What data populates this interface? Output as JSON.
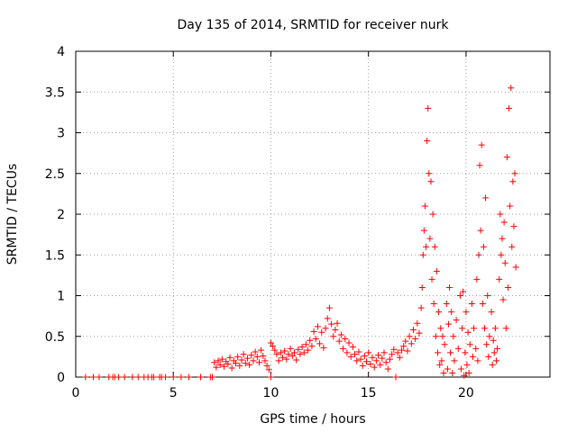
{
  "chart_data": {
    "type": "scatter",
    "title": "Day 135 of 2014, SRMTID for receiver nurk",
    "xlabel": "GPS time / hours",
    "ylabel": "SRMTID / TECUs",
    "xlim": [
      0,
      24.3
    ],
    "ylim": [
      0,
      4
    ],
    "x_ticks": [
      0,
      5,
      10,
      15,
      20
    ],
    "x_tick_labels": [
      "0",
      "5",
      "10",
      "15",
      "20"
    ],
    "y_ticks": [
      0,
      0.5,
      1,
      1.5,
      2,
      2.5,
      3,
      3.5,
      4
    ],
    "y_tick_labels": [
      "0",
      "0.5",
      "1",
      "1.5",
      "2",
      "2.5",
      "3",
      "3.5",
      "4"
    ],
    "grid": true,
    "marker": "+",
    "series": [
      {
        "name": "SRMTID",
        "color": "#ff0000",
        "points": [
          [
            0.5,
            0
          ],
          [
            0.9,
            0
          ],
          [
            1.2,
            0
          ],
          [
            1.7,
            0
          ],
          [
            1.9,
            0
          ],
          [
            2.0,
            0
          ],
          [
            2.2,
            0
          ],
          [
            2.5,
            0
          ],
          [
            2.9,
            0
          ],
          [
            3.2,
            0
          ],
          [
            3.5,
            0
          ],
          [
            3.7,
            0
          ],
          [
            3.9,
            0
          ],
          [
            4.0,
            0
          ],
          [
            4.3,
            0
          ],
          [
            4.4,
            0
          ],
          [
            4.6,
            0
          ],
          [
            5.0,
            0
          ],
          [
            5.4,
            0
          ],
          [
            5.8,
            0
          ],
          [
            6.4,
            0
          ],
          [
            6.9,
            0
          ],
          [
            7.0,
            0
          ],
          [
            10.0,
            0
          ],
          [
            16.4,
            0
          ],
          [
            7.1,
            0.18
          ],
          [
            7.2,
            0.12
          ],
          [
            7.3,
            0.2
          ],
          [
            7.4,
            0.15
          ],
          [
            7.5,
            0.22
          ],
          [
            7.6,
            0.13
          ],
          [
            7.7,
            0.19
          ],
          [
            7.8,
            0.16
          ],
          [
            7.9,
            0.24
          ],
          [
            8.0,
            0.11
          ],
          [
            8.1,
            0.2
          ],
          [
            8.2,
            0.17
          ],
          [
            8.3,
            0.25
          ],
          [
            8.4,
            0.14
          ],
          [
            8.5,
            0.21
          ],
          [
            8.6,
            0.28
          ],
          [
            8.7,
            0.17
          ],
          [
            8.8,
            0.23
          ],
          [
            8.9,
            0.15
          ],
          [
            9.0,
            0.27
          ],
          [
            9.1,
            0.2
          ],
          [
            9.2,
            0.31
          ],
          [
            9.3,
            0.25
          ],
          [
            9.4,
            0.18
          ],
          [
            9.5,
            0.33
          ],
          [
            9.6,
            0.26
          ],
          [
            9.7,
            0.2
          ],
          [
            9.8,
            0.14
          ],
          [
            9.9,
            0.09
          ],
          [
            10.0,
            0.42
          ],
          [
            10.1,
            0.38
          ],
          [
            10.2,
            0.33
          ],
          [
            10.3,
            0.28
          ],
          [
            10.4,
            0.2
          ],
          [
            10.5,
            0.3
          ],
          [
            10.6,
            0.24
          ],
          [
            10.7,
            0.32
          ],
          [
            10.8,
            0.22
          ],
          [
            10.9,
            0.28
          ],
          [
            11.0,
            0.35
          ],
          [
            11.1,
            0.26
          ],
          [
            11.2,
            0.3
          ],
          [
            11.3,
            0.21
          ],
          [
            11.4,
            0.34
          ],
          [
            11.5,
            0.28
          ],
          [
            11.6,
            0.37
          ],
          [
            11.7,
            0.3
          ],
          [
            11.8,
            0.4
          ],
          [
            11.9,
            0.33
          ],
          [
            12.0,
            0.45
          ],
          [
            12.1,
            0.38
          ],
          [
            12.2,
            0.56
          ],
          [
            12.3,
            0.47
          ],
          [
            12.4,
            0.62
          ],
          [
            12.5,
            0.41
          ],
          [
            12.6,
            0.55
          ],
          [
            12.7,
            0.36
          ],
          [
            12.8,
            0.6
          ],
          [
            12.9,
            0.72
          ],
          [
            13.0,
            0.85
          ],
          [
            13.1,
            0.65
          ],
          [
            13.2,
            0.5
          ],
          [
            13.3,
            0.58
          ],
          [
            13.4,
            0.66
          ],
          [
            13.5,
            0.44
          ],
          [
            13.6,
            0.52
          ],
          [
            13.7,
            0.35
          ],
          [
            13.8,
            0.47
          ],
          [
            13.9,
            0.3
          ],
          [
            14.0,
            0.42
          ],
          [
            14.1,
            0.25
          ],
          [
            14.2,
            0.37
          ],
          [
            14.3,
            0.28
          ],
          [
            14.4,
            0.2
          ],
          [
            14.5,
            0.31
          ],
          [
            14.6,
            0.22
          ],
          [
            14.7,
            0.14
          ],
          [
            14.8,
            0.26
          ],
          [
            14.9,
            0.19
          ],
          [
            15.0,
            0.3
          ],
          [
            15.1,
            0.16
          ],
          [
            15.2,
            0.24
          ],
          [
            15.3,
            0.12
          ],
          [
            15.4,
            0.2
          ],
          [
            15.5,
            0.27
          ],
          [
            15.6,
            0.15
          ],
          [
            15.7,
            0.23
          ],
          [
            15.8,
            0.3
          ],
          [
            15.9,
            0.18
          ],
          [
            16.0,
            0.1
          ],
          [
            16.1,
            0.22
          ],
          [
            16.2,
            0.28
          ],
          [
            16.3,
            0.34
          ],
          [
            16.5,
            0.3
          ],
          [
            16.6,
            0.24
          ],
          [
            16.7,
            0.33
          ],
          [
            16.8,
            0.38
          ],
          [
            16.9,
            0.44
          ],
          [
            17.0,
            0.32
          ],
          [
            17.1,
            0.5
          ],
          [
            17.2,
            0.41
          ],
          [
            17.3,
            0.58
          ],
          [
            17.4,
            0.47
          ],
          [
            17.5,
            0.66
          ],
          [
            17.6,
            0.54
          ],
          [
            17.7,
            0.85
          ],
          [
            17.75,
            1.1
          ],
          [
            17.8,
            1.5
          ],
          [
            17.85,
            1.8
          ],
          [
            17.9,
            2.1
          ],
          [
            17.95,
            1.6
          ],
          [
            18.0,
            2.9
          ],
          [
            18.05,
            3.3
          ],
          [
            18.1,
            2.5
          ],
          [
            18.15,
            1.7
          ],
          [
            18.2,
            2.4
          ],
          [
            18.25,
            1.2
          ],
          [
            18.3,
            2.0
          ],
          [
            18.35,
            0.9
          ],
          [
            18.4,
            1.6
          ],
          [
            18.45,
            0.5
          ],
          [
            18.5,
            1.3
          ],
          [
            18.55,
            0.3
          ],
          [
            18.6,
            0.8
          ],
          [
            18.65,
            0.15
          ],
          [
            18.7,
            0.6
          ],
          [
            18.75,
            0.2
          ],
          [
            18.8,
            0.5
          ],
          [
            18.85,
            0.05
          ],
          [
            18.9,
            0.4
          ],
          [
            19.0,
            0.9
          ],
          [
            19.05,
            0.1
          ],
          [
            19.1,
            0.65
          ],
          [
            19.15,
            1.1
          ],
          [
            19.2,
            0.3
          ],
          [
            19.25,
            0.8
          ],
          [
            19.3,
            0.05
          ],
          [
            19.35,
            0.5
          ],
          [
            19.4,
            0.2
          ],
          [
            19.5,
            0.7
          ],
          [
            19.6,
            0.35
          ],
          [
            19.7,
            1.0
          ],
          [
            19.75,
            0.1
          ],
          [
            19.8,
            0.6
          ],
          [
            19.85,
            1.05
          ],
          [
            19.9,
            0.02
          ],
          [
            19.95,
            0.3
          ],
          [
            20.0,
            0.8
          ],
          [
            20.05,
            0.15
          ],
          [
            20.1,
            0.55
          ],
          [
            20.15,
            0.05
          ],
          [
            20.2,
            0.4
          ],
          [
            20.3,
            0.9
          ],
          [
            20.35,
            0.25
          ],
          [
            20.4,
            0.6
          ],
          [
            20.5,
            0.35
          ],
          [
            20.55,
            1.2
          ],
          [
            20.6,
            0.2
          ],
          [
            20.65,
            1.5
          ],
          [
            20.7,
            2.6
          ],
          [
            20.75,
            1.8
          ],
          [
            20.8,
            2.85
          ],
          [
            20.85,
            0.9
          ],
          [
            20.9,
            1.6
          ],
          [
            20.95,
            0.6
          ],
          [
            21.0,
            2.2
          ],
          [
            21.05,
            0.4
          ],
          [
            21.1,
            1.0
          ],
          [
            21.15,
            0.25
          ],
          [
            21.2,
            0.5
          ],
          [
            21.3,
            0.8
          ],
          [
            21.35,
            0.15
          ],
          [
            21.4,
            0.45
          ],
          [
            21.45,
            0.3
          ],
          [
            21.5,
            0.6
          ],
          [
            21.55,
            0.2
          ],
          [
            21.6,
            0.35
          ],
          [
            21.7,
            1.2
          ],
          [
            21.75,
            2.0
          ],
          [
            21.8,
            1.5
          ],
          [
            21.85,
            1.7
          ],
          [
            21.9,
            0.95
          ],
          [
            21.95,
            1.9
          ],
          [
            22.0,
            1.4
          ],
          [
            22.05,
            0.6
          ],
          [
            22.1,
            2.7
          ],
          [
            22.15,
            1.1
          ],
          [
            22.2,
            3.3
          ],
          [
            22.25,
            2.1
          ],
          [
            22.3,
            3.55
          ],
          [
            22.35,
            1.6
          ],
          [
            22.4,
            2.4
          ],
          [
            22.45,
            1.85
          ],
          [
            22.5,
            2.5
          ],
          [
            22.55,
            1.35
          ]
        ]
      }
    ]
  }
}
